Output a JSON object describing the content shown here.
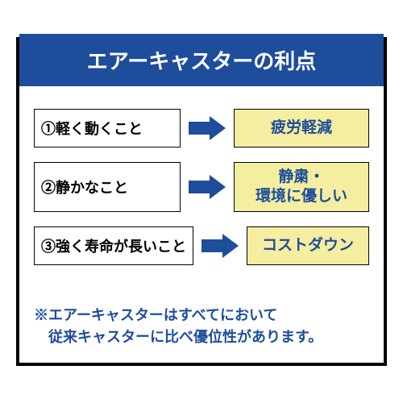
{
  "colors": {
    "title_bg": "#1e4d9b",
    "title_text": "#ffffff",
    "feature_bg": "#ffffff",
    "feature_text": "#000000",
    "benefit_bg": "#f5eea0",
    "benefit_text": "#1e4d9b",
    "arrow_fill": "#1e4d9b",
    "footnote_text": "#1e4d9b",
    "border": "#000000"
  },
  "typography": {
    "title_fontsize": 26,
    "cell_fontsize": 18,
    "benefit_fontsize": 19,
    "footnote_fontsize": 18
  },
  "title": "エアーキャスターの利点",
  "rows": [
    {
      "feature": "①軽く動くこと",
      "benefit": "疲労軽減"
    },
    {
      "feature": "②静かなこと",
      "benefit": "静粛・\n環境に優しい"
    },
    {
      "feature": "③強く寿命が長いこと",
      "benefit": "コストダウン"
    }
  ],
  "footnote": "※エアーキャスターはすべてにおいて\n　従来キャスターに比べ優位性があります。"
}
